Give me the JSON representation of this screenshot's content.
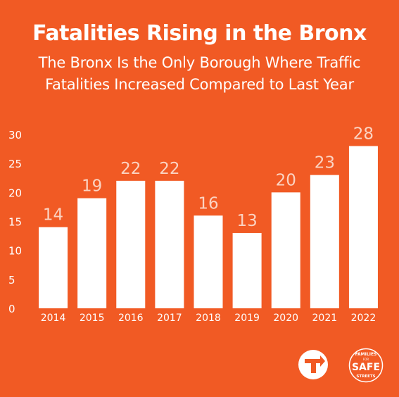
{
  "chart_data": {
    "type": "bar",
    "title": "Fatalities Rising in the Bronx",
    "subtitle_lines": [
      "The Bronx Is the Only Borough Where Traffic",
      "Fatalities Increased Compared to Last Year"
    ],
    "categories": [
      "2014",
      "2015",
      "2016",
      "2017",
      "2018",
      "2019",
      "2020",
      "2021",
      "2022"
    ],
    "values": [
      14,
      19,
      22,
      22,
      16,
      13,
      20,
      23,
      28
    ],
    "yticks": [
      0,
      5,
      10,
      15,
      20,
      25,
      30
    ],
    "ylim": [
      0,
      30
    ],
    "xlabel": "",
    "ylabel": "",
    "grid": false,
    "colors": {
      "background": "#F15A24",
      "bar": "#FFFFFF",
      "data_label": "#FBD3C2",
      "text": "#FFFFFF"
    }
  },
  "logos": {
    "left": {
      "icon": "t-arrow-icon"
    },
    "right": {
      "icon": "families-for-safe-streets-seal",
      "text_top": "FAMILIES",
      "text_mid": "FOR",
      "text_main": "SAFE",
      "text_bottom": "STREETS"
    }
  }
}
